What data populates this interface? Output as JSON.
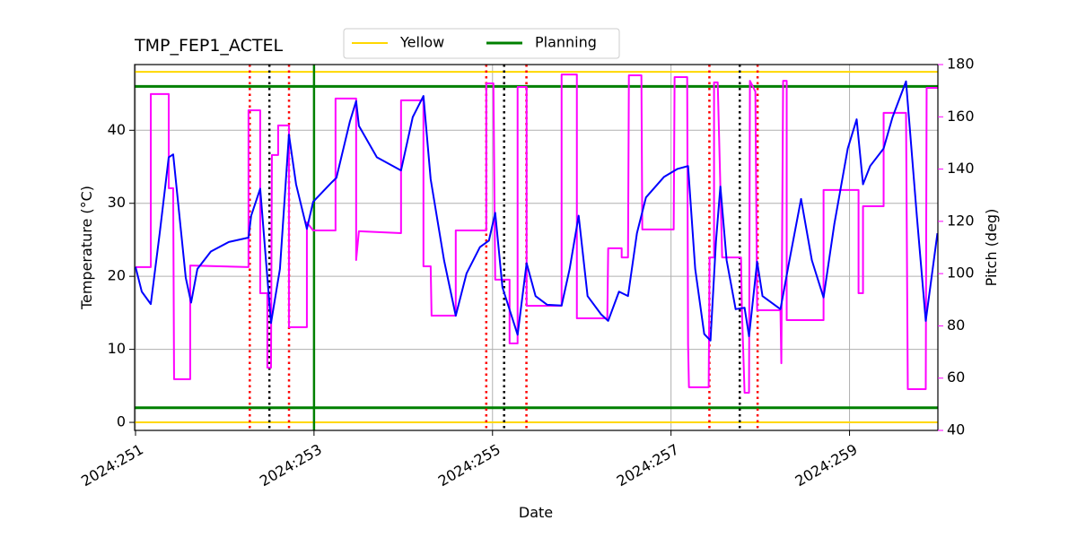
{
  "chart_data": {
    "type": "line",
    "title": "TMP_FEP1_ACTEL",
    "xlabel": "Date",
    "ylabel": "Temperature (°C)",
    "y2label": "Pitch (deg)",
    "y2color": "#ff00ff",
    "grid": true,
    "legend": "top",
    "xlim": [
      250.99,
      259.99
    ],
    "xticks": [
      {
        "value": 251,
        "label": "2024:251"
      },
      {
        "value": 253,
        "label": "2024:253"
      },
      {
        "value": 255,
        "label": "2024:255"
      },
      {
        "value": 257,
        "label": "2024:257"
      },
      {
        "value": 259,
        "label": "2024:259"
      }
    ],
    "ylim": [
      -1.1,
      49
    ],
    "yticks": [
      0,
      10,
      20,
      30,
      40
    ],
    "y2lim": [
      40,
      180
    ],
    "y2ticks": [
      40,
      60,
      80,
      100,
      120,
      140,
      160,
      180
    ],
    "limits": [
      {
        "name": "Yellow",
        "color": "#ffd700",
        "values": [
          0,
          48
        ]
      },
      {
        "name": "Planning",
        "color": "#008000",
        "values": [
          2,
          46
        ]
      }
    ],
    "vlines": [
      {
        "x": 253.0,
        "color": "#008000",
        "style": "solid"
      },
      {
        "x": 252.28,
        "color": "#ff0000",
        "style": "dotted"
      },
      {
        "x": 252.72,
        "color": "#ff0000",
        "style": "dotted"
      },
      {
        "x": 254.93,
        "color": "#ff0000",
        "style": "dotted"
      },
      {
        "x": 255.38,
        "color": "#ff0000",
        "style": "dotted"
      },
      {
        "x": 257.43,
        "color": "#ff0000",
        "style": "dotted"
      },
      {
        "x": 257.97,
        "color": "#ff0000",
        "style": "dotted"
      },
      {
        "x": 252.5,
        "color": "#000000",
        "style": "dotted"
      },
      {
        "x": 255.13,
        "color": "#000000",
        "style": "dotted"
      },
      {
        "x": 257.77,
        "color": "#000000",
        "style": "dotted"
      }
    ],
    "series": [
      {
        "color": "#ff00ff",
        "axis": "y2",
        "x": [
          251.0,
          251.171,
          251.171,
          251.372,
          251.372,
          251.422,
          251.432,
          251.613,
          251.613,
          252.266,
          252.266,
          252.397,
          252.397,
          252.477,
          252.477,
          252.518,
          252.528,
          252.598,
          252.598,
          252.719,
          252.719,
          252.92,
          252.92,
          252.99,
          253.241,
          253.241,
          253.472,
          253.472,
          253.503,
          253.975,
          253.975,
          254.226,
          254.226,
          254.307,
          254.317,
          254.588,
          254.588,
          254.93,
          254.93,
          255.01,
          255.03,
          255.191,
          255.191,
          255.281,
          255.281,
          255.382,
          255.382,
          255.774,
          255.774,
          255.945,
          255.945,
          256.286,
          256.296,
          256.447,
          256.447,
          256.518,
          256.528,
          256.668,
          256.678,
          257.03,
          257.04,
          257.181,
          257.191,
          257.201,
          257.422,
          257.432,
          257.482,
          257.482,
          257.523,
          257.573,
          257.784,
          257.794,
          257.824,
          257.874,
          257.884,
          257.945,
          257.965,
          258.226,
          258.236,
          258.256,
          258.296,
          258.296,
          258.709,
          258.709,
          259.101,
          259.101,
          259.151,
          259.151,
          259.382,
          259.382,
          259.633,
          259.653,
          259.854,
          259.864,
          259.985
        ],
        "values": [
          102.5,
          102.5,
          168.7,
          168.7,
          132.7,
          132.7,
          59.6,
          59.6,
          103.1,
          102.5,
          162.5,
          162.5,
          92.5,
          92.5,
          64.0,
          64.0,
          145.4,
          145.4,
          156.7,
          156.7,
          79.5,
          79.5,
          119.6,
          116.5,
          116.5,
          167.0,
          167.0,
          105.2,
          116.2,
          115.5,
          166.3,
          166.3,
          102.8,
          102.8,
          83.9,
          83.9,
          116.5,
          116.5,
          172.8,
          172.8,
          97.7,
          97.7,
          73.3,
          73.3,
          171.4,
          171.4,
          87.7,
          87.7,
          176.2,
          176.2,
          82.9,
          82.9,
          109.7,
          109.7,
          106.2,
          106.2,
          175.9,
          175.9,
          116.9,
          116.9,
          175.2,
          175.2,
          73.0,
          56.5,
          56.5,
          106.2,
          106.2,
          173.2,
          173.2,
          106.2,
          106.2,
          86.3,
          54.4,
          54.4,
          173.8,
          169.7,
          86.0,
          86.0,
          65.7,
          173.8,
          173.8,
          82.2,
          82.2,
          132.0,
          132.0,
          92.5,
          92.5,
          125.8,
          125.8,
          161.5,
          161.5,
          55.8,
          55.8,
          171.1,
          171.1
        ]
      },
      {
        "color": "#0000ff",
        "x": [
          251.0,
          251.07,
          251.171,
          251.271,
          251.372,
          251.422,
          251.492,
          251.563,
          251.623,
          251.693,
          251.844,
          252.045,
          252.266,
          252.296,
          252.397,
          252.518,
          252.618,
          252.719,
          252.799,
          252.92,
          252.99,
          253.201,
          253.251,
          253.402,
          253.472,
          253.503,
          253.704,
          253.975,
          254.106,
          254.226,
          254.307,
          254.457,
          254.588,
          254.709,
          254.859,
          254.96,
          255.03,
          255.111,
          255.281,
          255.382,
          255.482,
          255.613,
          255.774,
          255.864,
          255.965,
          256.065,
          256.216,
          256.296,
          256.417,
          256.518,
          256.618,
          256.719,
          256.92,
          257.07,
          257.191,
          257.271,
          257.372,
          257.442,
          257.503,
          257.553,
          257.623,
          257.724,
          257.824,
          257.874,
          257.965,
          258.025,
          258.226,
          258.327,
          258.457,
          258.578,
          258.709,
          258.829,
          258.98,
          259.08,
          259.151,
          259.231,
          259.382,
          259.482,
          259.633,
          259.754,
          259.854,
          259.985
        ],
        "values": [
          21.3,
          17.9,
          16.2,
          25.9,
          36.3,
          36.7,
          28.3,
          19.8,
          16.4,
          21.0,
          23.4,
          24.7,
          25.3,
          28.3,
          32.0,
          13.6,
          21.0,
          39.4,
          32.6,
          26.5,
          30.2,
          32.9,
          33.5,
          41.2,
          44.0,
          40.6,
          36.3,
          34.5,
          41.8,
          44.7,
          33.3,
          22.2,
          14.6,
          20.4,
          24.0,
          24.9,
          28.7,
          18.5,
          12.0,
          21.8,
          17.3,
          16.1,
          16.0,
          21.0,
          28.3,
          17.3,
          14.8,
          13.9,
          17.9,
          17.3,
          25.9,
          30.8,
          33.6,
          34.7,
          35.1,
          21.0,
          12.1,
          11.2,
          24.7,
          32.3,
          22.2,
          15.5,
          15.7,
          11.8,
          22.0,
          17.3,
          15.5,
          22.2,
          30.6,
          22.2,
          17.1,
          27.1,
          37.5,
          41.5,
          32.6,
          35.1,
          37.5,
          41.8,
          46.7,
          28.3,
          13.9,
          25.9
        ]
      }
    ]
  }
}
